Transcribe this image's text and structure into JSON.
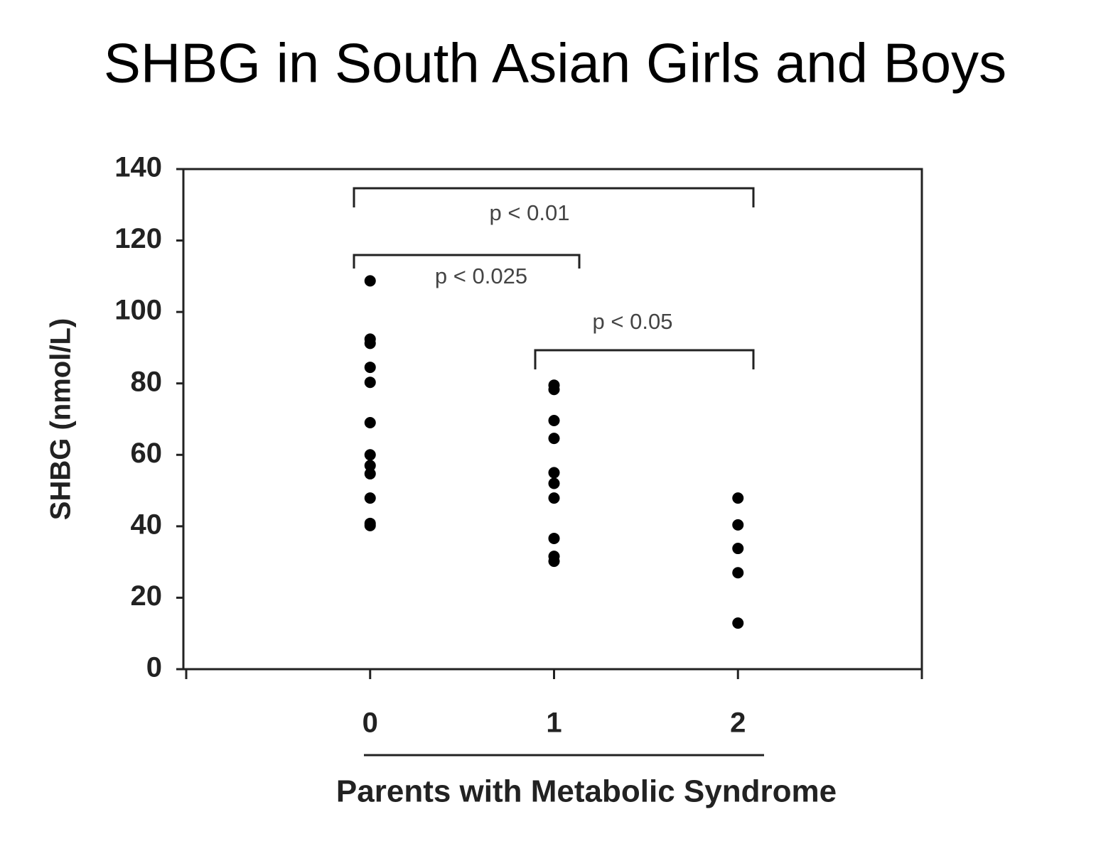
{
  "chart_data": {
    "type": "scatter",
    "title": "SHBG in South Asian Girls and Boys",
    "y_label": "SHBG (nmol/L)",
    "x_label": "Parents with Metabolic Syndrome",
    "x": [
      0,
      0,
      0,
      0,
      0,
      0,
      0,
      0,
      0,
      0,
      0,
      0,
      1,
      1,
      1,
      1,
      1,
      1,
      1,
      1,
      1,
      1,
      2,
      2,
      2,
      2,
      2
    ],
    "values": [
      108.7,
      92.4,
      91.2,
      84.5,
      80.3,
      69,
      60,
      57,
      54.7,
      47.9,
      40.8,
      40.2,
      79.5,
      78.3,
      69.6,
      64.6,
      55,
      52,
      47.9,
      36.6,
      31.6,
      30.2,
      47.9,
      40.4,
      33.8,
      27,
      12.9
    ],
    "color": "#000000",
    "xlim": [
      -1,
      3
    ],
    "xticks": [
      0,
      1,
      2
    ],
    "ylim": [
      0,
      140
    ],
    "yticks": [
      0,
      20,
      40,
      60,
      80,
      100,
      120,
      140
    ],
    "annotations": [
      "p < 0.01",
      "p < 0.025",
      "p < 0.05"
    ]
  }
}
